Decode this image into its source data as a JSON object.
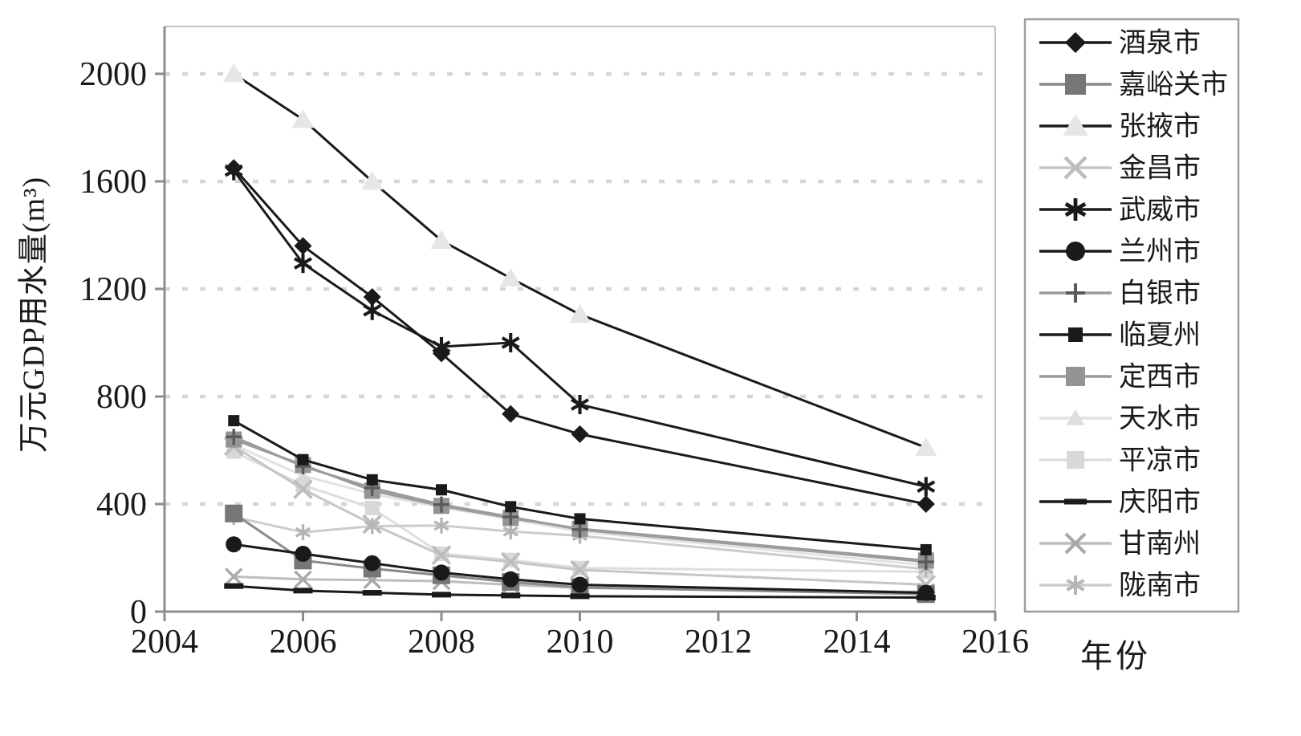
{
  "page": {
    "background": "#ffffff"
  },
  "chart_data": {
    "type": "line",
    "title": "",
    "xlabel": "年份",
    "ylabel": "万元GDP用水量(m³)",
    "x": [
      2005,
      2006,
      2007,
      2008,
      2009,
      2010,
      2015
    ],
    "xticks": [
      2004,
      2006,
      2008,
      2010,
      2012,
      2014,
      2016
    ],
    "yticks": [
      0,
      400,
      800,
      1200,
      1600,
      2000
    ],
    "xlim": [
      2004,
      2016
    ],
    "ylim": [
      0,
      2176
    ],
    "grid": "horizontal-dotted",
    "grid_color": "#d6d6d6",
    "axis_color": "#8c8c8c",
    "frame_color": "#c2c2c2",
    "legend_position": "right-box",
    "legend_border_color": "#9e9e9e",
    "series": [
      {
        "name": "酒泉市",
        "marker": "diamond",
        "marker_size": 11,
        "line_color": "#1a1a1a",
        "marker_color": "#1a1a1a",
        "values": [
          1650,
          1360,
          1170,
          960,
          735,
          660,
          400
        ]
      },
      {
        "name": "嘉峪关市",
        "marker": "square",
        "marker_size": 11,
        "line_color": "#8a8a8a",
        "marker_color": "#767676",
        "values": [
          365,
          190,
          160,
          135,
          110,
          90,
          65
        ]
      },
      {
        "name": "张掖市",
        "marker": "triangle",
        "marker_size": 13,
        "line_color": "#1a1a1a",
        "marker_color": "#e6e6e6",
        "values": [
          2000,
          1830,
          1600,
          1380,
          1240,
          1105,
          610
        ]
      },
      {
        "name": "金昌市",
        "marker": "x",
        "marker_size": 11,
        "line_color": "#c6c6c6",
        "marker_color": "#bdbdbd",
        "values": [
          615,
          455,
          325,
          210,
          185,
          155,
          100
        ]
      },
      {
        "name": "武威市",
        "marker": "asterisk",
        "marker_size": 12,
        "line_color": "#1a1a1a",
        "marker_color": "#1a1a1a",
        "values": [
          1640,
          1295,
          1120,
          985,
          1000,
          770,
          465
        ]
      },
      {
        "name": "兰州市",
        "marker": "circle",
        "marker_size": 10,
        "line_color": "#1a1a1a",
        "marker_color": "#1a1a1a",
        "values": [
          250,
          215,
          180,
          145,
          120,
          100,
          70
        ]
      },
      {
        "name": "白银市",
        "marker": "plus",
        "marker_size": 10,
        "line_color": "#9c9c9c",
        "marker_color": "#5a5a5a",
        "values": [
          650,
          540,
          460,
          398,
          352,
          305,
          185
        ]
      },
      {
        "name": "临夏州",
        "marker": "small-square",
        "marker_size": 7,
        "line_color": "#1a1a1a",
        "marker_color": "#1a1a1a",
        "values": [
          710,
          565,
          490,
          453,
          390,
          345,
          230
        ]
      },
      {
        "name": "定西市",
        "marker": "square",
        "marker_size": 10,
        "line_color": "#9a9a9a",
        "marker_color": "#949494",
        "values": [
          640,
          545,
          450,
          393,
          348,
          308,
          190
        ]
      },
      {
        "name": "天水市",
        "marker": "triangle",
        "marker_size": 9,
        "line_color": "#e2e2e2",
        "marker_color": "#dedede",
        "values": [
          620,
          505,
          438,
          388,
          344,
          298,
          172
        ]
      },
      {
        "name": "平凉市",
        "marker": "square",
        "marker_size": 9,
        "line_color": "#dedede",
        "marker_color": "#d8d8d8",
        "values": [
          595,
          470,
          385,
          215,
          192,
          162,
          148
        ]
      },
      {
        "name": "庆阳市",
        "marker": "dash",
        "marker_size": 12,
        "line_color": "#1a1a1a",
        "marker_color": "#1a1a1a",
        "values": [
          95,
          78,
          70,
          63,
          60,
          57,
          52
        ]
      },
      {
        "name": "甘南州",
        "marker": "x",
        "marker_size": 10,
        "line_color": "#bdbdbd",
        "marker_color": "#a9a9a9",
        "values": [
          130,
          120,
          117,
          113,
          100,
          88,
          73
        ]
      },
      {
        "name": "陇南市",
        "marker": "asterisk",
        "marker_size": 10,
        "line_color": "#cccccc",
        "marker_color": "#b5b5b5",
        "values": [
          352,
          295,
          318,
          320,
          298,
          282,
          158
        ]
      }
    ]
  }
}
